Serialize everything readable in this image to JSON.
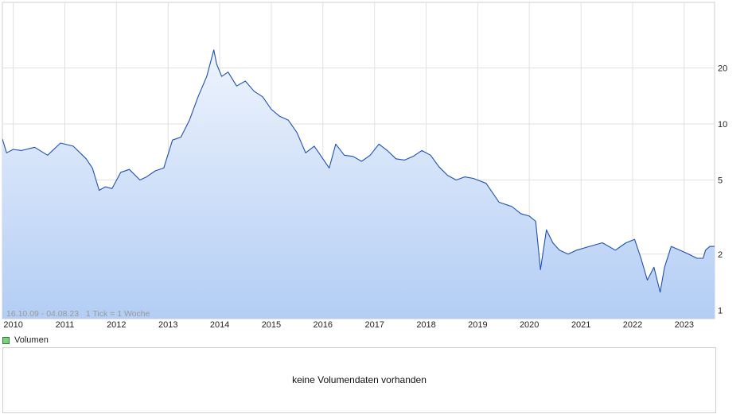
{
  "chart_data": {
    "type": "area",
    "scale": "log",
    "x": [
      "2009-10-16",
      "2009-11-15",
      "2009-12-31",
      "2010-03-01",
      "2010-06-01",
      "2010-09-01",
      "2010-12-01",
      "2011-03-01",
      "2011-06-01",
      "2011-07-15",
      "2011-09-01",
      "2011-10-15",
      "2011-12-01",
      "2012-02-01",
      "2012-04-01",
      "2012-06-15",
      "2012-08-01",
      "2012-10-01",
      "2012-12-01",
      "2013-02-01",
      "2013-04-01",
      "2013-06-01",
      "2013-08-01",
      "2013-10-01",
      "2013-11-20",
      "2013-12-10",
      "2014-01-15",
      "2014-03-01",
      "2014-05-01",
      "2014-07-01",
      "2014-09-01",
      "2014-11-01",
      "2015-01-01",
      "2015-03-01",
      "2015-05-01",
      "2015-07-01",
      "2015-09-01",
      "2015-11-01",
      "2016-01-01",
      "2016-02-15",
      "2016-04-01",
      "2016-06-01",
      "2016-08-01",
      "2016-10-01",
      "2016-12-01",
      "2017-02-01",
      "2017-04-01",
      "2017-06-01",
      "2017-08-01",
      "2017-10-01",
      "2017-12-01",
      "2018-02-01",
      "2018-04-01",
      "2018-06-01",
      "2018-08-01",
      "2018-10-01",
      "2018-12-01",
      "2019-03-01",
      "2019-06-01",
      "2019-09-01",
      "2019-11-01",
      "2020-01-01",
      "2020-02-15",
      "2020-03-20",
      "2020-05-01",
      "2020-06-15",
      "2020-08-01",
      "2020-10-01",
      "2020-12-01",
      "2021-03-01",
      "2021-06-01",
      "2021-09-01",
      "2021-11-15",
      "2022-01-15",
      "2022-03-01",
      "2022-04-15",
      "2022-06-01",
      "2022-07-15",
      "2022-08-15",
      "2022-10-01",
      "2022-12-01",
      "2023-02-01",
      "2023-04-01",
      "2023-05-15",
      "2023-06-01",
      "2023-07-01",
      "2023-08-04"
    ],
    "y": [
      8.3,
      7.0,
      7.3,
      7.2,
      7.5,
      6.8,
      7.9,
      7.6,
      6.5,
      5.8,
      4.4,
      4.6,
      4.5,
      5.5,
      5.7,
      5.0,
      5.2,
      5.6,
      5.8,
      8.2,
      8.5,
      10.5,
      14.0,
      18.0,
      25.0,
      21.0,
      18.0,
      19.0,
      16.0,
      17.0,
      15.0,
      14.0,
      12.0,
      11.0,
      10.5,
      9.0,
      7.0,
      7.6,
      6.5,
      5.8,
      7.8,
      6.8,
      6.7,
      6.3,
      6.8,
      7.8,
      7.2,
      6.5,
      6.4,
      6.7,
      7.2,
      6.8,
      5.9,
      5.3,
      5.0,
      5.2,
      5.1,
      4.8,
      3.8,
      3.6,
      3.3,
      3.2,
      3.0,
      1.65,
      2.7,
      2.3,
      2.1,
      2.0,
      2.1,
      2.2,
      2.3,
      2.1,
      2.3,
      2.4,
      1.9,
      1.45,
      1.7,
      1.25,
      1.7,
      2.2,
      2.1,
      2.0,
      1.9,
      1.9,
      2.1,
      2.2,
      2.2
    ],
    "ylim": [
      0.9,
      45
    ],
    "yticks": [
      "1",
      "2",
      "5",
      "10",
      "20"
    ],
    "xticks": [
      "2010",
      "2011",
      "2012",
      "2013",
      "2014",
      "2015",
      "2016",
      "2017",
      "2018",
      "2019",
      "2020",
      "2021",
      "2022",
      "2023"
    ],
    "grid": true,
    "line_color": "#1f4fae",
    "fill_top_color": "#eef4fd",
    "fill_bottom_color": "#b3cdf4",
    "range_text": "16.10.09 - 04.08.23   1 Tick = 1 Woche"
  },
  "volume": {
    "legend_label": "Volumen",
    "legend_color": "#7ed07e",
    "message": "keine Volumendaten vorhanden"
  }
}
